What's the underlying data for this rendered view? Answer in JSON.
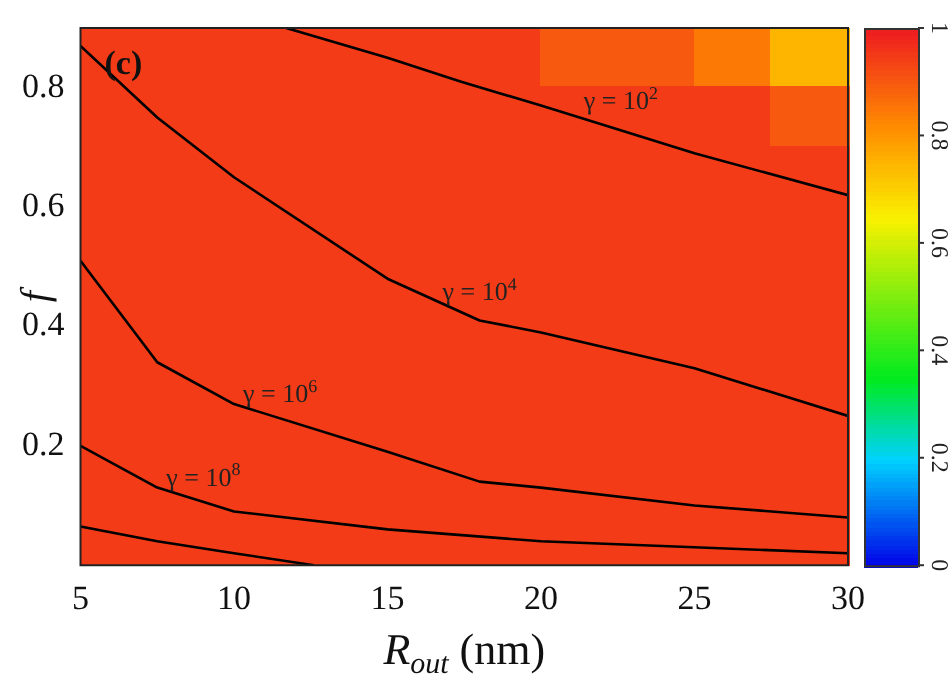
{
  "chart_data": {
    "type": "heatmap",
    "xlabel": "R$_{out}$ (nm)",
    "ylabel": "f",
    "x": [
      6.25,
      8.75,
      11.25,
      13.75,
      16.25,
      18.75,
      21.25,
      23.75,
      26.25,
      28.75
    ],
    "y": [
      0.85,
      0.75,
      0.65,
      0.55,
      0.45,
      0.35,
      0.25,
      0.15,
      0.05
    ],
    "cells": [
      [
        0.95,
        0.95,
        0.95,
        0.95,
        0.95,
        0.95,
        0.9,
        0.9,
        0.85,
        0.75
      ],
      [
        0.95,
        0.95,
        0.95,
        0.95,
        0.95,
        0.95,
        0.95,
        0.95,
        0.95,
        0.9
      ],
      [
        0.95,
        0.95,
        0.95,
        0.95,
        0.95,
        0.95,
        0.95,
        0.95,
        0.95,
        0.95
      ],
      [
        0.95,
        0.95,
        0.95,
        0.95,
        0.95,
        0.95,
        0.95,
        0.95,
        0.95,
        0.95
      ],
      [
        0.95,
        0.95,
        0.95,
        0.95,
        0.95,
        0.95,
        0.95,
        0.95,
        0.95,
        0.95
      ],
      [
        0.95,
        0.95,
        0.95,
        0.95,
        0.95,
        0.95,
        0.95,
        0.95,
        0.95,
        0.95
      ],
      [
        0.95,
        0.95,
        0.95,
        0.95,
        0.95,
        0.95,
        0.95,
        0.95,
        0.95,
        0.95
      ],
      [
        0.95,
        0.95,
        0.95,
        0.95,
        0.95,
        0.95,
        0.95,
        0.95,
        0.95,
        0.95
      ],
      [
        0.95,
        0.95,
        0.95,
        0.95,
        0.95,
        0.95,
        0.95,
        0.95,
        0.95,
        0.95
      ]
    ],
    "clim": [
      0,
      1
    ],
    "cticks": [
      0,
      0.2,
      0.4,
      0.6,
      0.8,
      1
    ],
    "xlim": [
      5,
      30
    ],
    "ylim": [
      0,
      0.9
    ],
    "xticks": [
      5,
      10,
      15,
      20,
      25,
      30
    ],
    "yticks": [
      0.2,
      0.4,
      0.6,
      0.8
    ],
    "series": [
      {
        "type": "line",
        "color": "#000000",
        "x": [
          11.7,
          15,
          17.4,
          20,
          25,
          30
        ],
        "values": [
          0.9,
          0.85,
          0.81,
          0.77,
          0.69,
          0.62
        ]
      },
      {
        "type": "line",
        "color": "#000000",
        "x": [
          5,
          7.5,
          10,
          15,
          18,
          20,
          25,
          30
        ],
        "values": [
          0.87,
          0.75,
          0.65,
          0.48,
          0.41,
          0.39,
          0.33,
          0.25
        ]
      },
      {
        "type": "line",
        "color": "#000000",
        "x": [
          5,
          7.5,
          10,
          15,
          18,
          20,
          25,
          30
        ],
        "values": [
          0.51,
          0.34,
          0.27,
          0.19,
          0.14,
          0.13,
          0.1,
          0.08
        ]
      },
      {
        "type": "line",
        "color": "#000000",
        "x": [
          5,
          7.5,
          10,
          15,
          20,
          30
        ],
        "values": [
          0.2,
          0.13,
          0.09,
          0.06,
          0.04,
          0.02
        ]
      },
      {
        "type": "line",
        "color": "#000000",
        "x": [
          5,
          7.5,
          10,
          12.6
        ],
        "values": [
          0.065,
          0.04,
          0.02,
          0
        ]
      }
    ],
    "annotations": [
      "(c)",
      {
        "text": "γ = 10$^{2}$",
        "x": 22.6,
        "y": 0.73
      },
      {
        "text": "γ = 10$^{4}$",
        "x": 18,
        "y": 0.41
      },
      {
        "text": "γ = 10$^{6}$",
        "x": 11.5,
        "y": 0.24
      },
      {
        "text": "γ = 10$^{8}$",
        "x": 9,
        "y": 0.1
      }
    ],
    "grid": false,
    "legend": false,
    "marker": "none",
    "line_style": "solid"
  }
}
